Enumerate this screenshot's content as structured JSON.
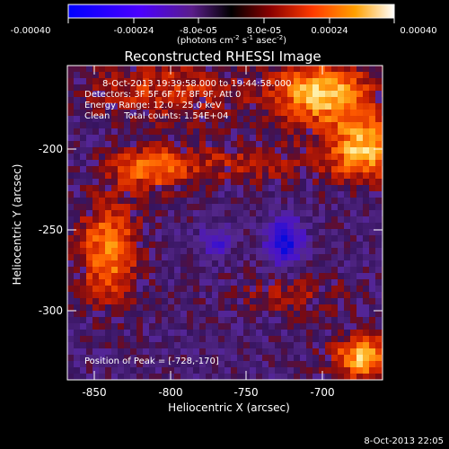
{
  "colorbar": {
    "ticks": [
      "-0.00040",
      "-0.00024",
      "-8.0e-05",
      "8.0e-05",
      "0.00024",
      "0.00040"
    ],
    "unit_label_html": "(photons cm<tspan baseline-shift=\"super\" font-size=\"7\">-2</tspan> s<tspan baseline-shift=\"super\" font-size=\"7\">-1</tspan> asec<tspan baseline-shift=\"super\" font-size=\"7\">-2</tspan>)"
  },
  "title": "Reconstructed RHESSI Image",
  "info_lines": [
    "8-Oct-2013 19:39:58.000 to 19:44:58.000",
    "Detectors: 3F 5F 6F 7F 8F 9F, Att 0",
    "Energy Range: 12.0 - 25.0 keV",
    "Clean     Total counts: 1.54E+04"
  ],
  "peak_text": "Position of Peak = [-728,-170]",
  "axes": {
    "xlabel": "Heliocentric X (arcsec)",
    "ylabel": "Heliocentric Y (arcsec)",
    "xticks": [
      "-850",
      "-800",
      "-750",
      "-700"
    ],
    "yticks": [
      "-200",
      "-250",
      "-300"
    ]
  },
  "timestamp": "8-Oct-2013 22:05"
}
